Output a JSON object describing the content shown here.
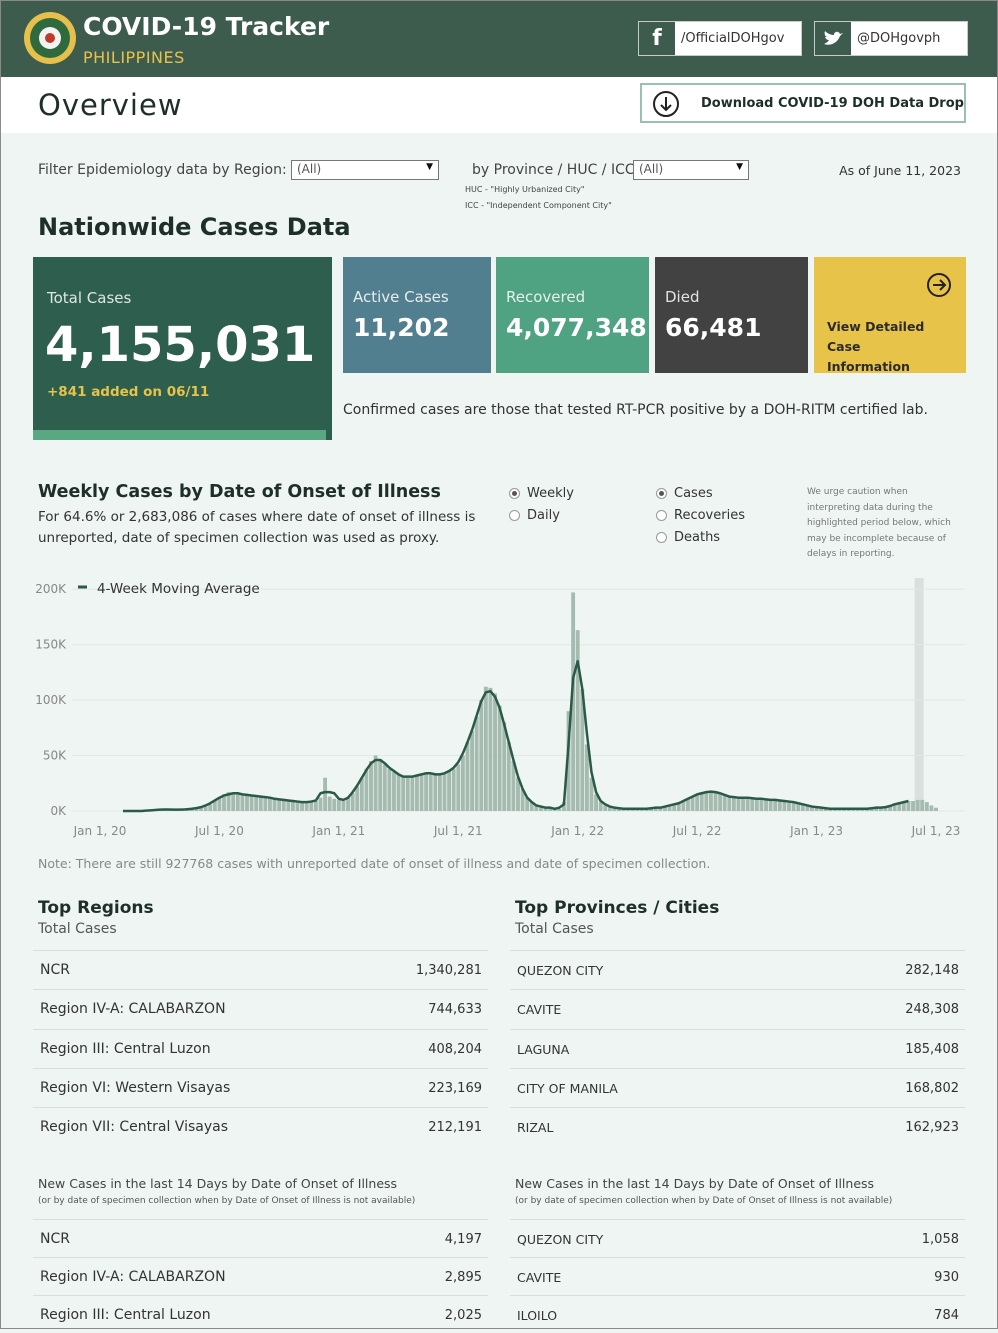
{
  "header": {
    "title": "COVID-19 Tracker",
    "subtitle": "PHILIPPINES",
    "facebook": "/OfficialDOHgov",
    "twitter": "@DOHgovph"
  },
  "overview": {
    "title": "Overview",
    "download": "Download COVID-19 DOH Data Drop"
  },
  "filters": {
    "region_label": "Filter Epidemiology data by Region:",
    "region_value": "(All)",
    "province_label": "by Province / HUC / ICC:",
    "province_value": "(All)",
    "huc_note": "HUC - \"Highly Urbanized City\"",
    "icc_note": "ICC - \"Independent Component City\"",
    "as_of": "As of June 11, 2023"
  },
  "nationwide": {
    "title": "Nationwide Cases Data",
    "total_label": "Total Cases",
    "total_value": "4,155,031",
    "added": "+841 added on 06/11",
    "active_label": "Active Cases",
    "active_value": "11,202",
    "recovered_label": "Recovered",
    "recovered_value": "4,077,348",
    "died_label": "Died",
    "died_value": "66,481",
    "details_link": "View Detailed Case Information",
    "confirmed_note": "Confirmed cases are those that tested RT-PCR positive by a DOH-RITM certified lab."
  },
  "chart_data": {
    "type": "bar",
    "title": "Weekly Cases by Date of Onset of Illness",
    "subtitle": "For 64.6% or 2,683,086 of cases where date of onset of illness is unreported, date of specimen collection was used as proxy.",
    "period_options": [
      "Weekly",
      "Daily"
    ],
    "metric_options": [
      "Cases",
      "Recoveries",
      "Deaths"
    ],
    "caution": "We urge caution when interpreting data during the highlighted period below, which may be incomplete because of delays in reporting.",
    "footnote": "Note: There are still 927768 cases with unreported date of onset of illness and date of specimen collection.",
    "color": "#a5bbb0",
    "grid": true,
    "ylim": [
      0,
      210000
    ],
    "yticks": [
      {
        "value": 0,
        "label": "0K"
      },
      {
        "value": 50000,
        "label": "50K"
      },
      {
        "value": 100000,
        "label": "100K"
      },
      {
        "value": 150000,
        "label": "150K"
      },
      {
        "value": 200000,
        "label": "200K"
      }
    ],
    "categories": [
      "Jan 1, 20",
      null,
      null,
      null,
      null,
      null,
      null,
      null,
      null,
      null,
      null,
      null,
      null,
      null,
      null,
      null,
      null,
      null,
      null,
      null,
      null,
      null,
      null,
      null,
      null,
      null,
      "Jul 1, 20",
      null,
      null,
      null,
      null,
      null,
      null,
      null,
      null,
      null,
      null,
      null,
      null,
      null,
      null,
      null,
      null,
      null,
      null,
      null,
      null,
      null,
      null,
      null,
      null,
      null,
      "Jan 1, 21",
      null,
      null,
      null,
      null,
      null,
      null,
      null,
      null,
      null,
      null,
      null,
      null,
      null,
      null,
      null,
      null,
      null,
      null,
      null,
      null,
      null,
      null,
      null,
      null,
      null,
      "Jul 1, 21",
      null,
      null,
      null,
      null,
      null,
      null,
      null,
      null,
      null,
      null,
      null,
      null,
      null,
      null,
      null,
      null,
      null,
      null,
      null,
      null,
      null,
      null,
      null,
      null,
      null,
      "Jan 1, 22",
      null,
      null,
      null,
      null,
      null,
      null,
      null,
      null,
      null,
      null,
      null,
      null,
      null,
      null,
      null,
      null,
      null,
      null,
      null,
      null,
      null,
      null,
      null,
      null,
      null,
      "Jul 1, 22",
      null,
      null,
      null,
      null,
      null,
      null,
      null,
      null,
      null,
      null,
      null,
      null,
      null,
      null,
      null,
      null,
      null,
      null,
      null,
      null,
      null,
      null,
      null,
      null,
      null,
      "Jan 1, 23",
      null,
      null,
      null,
      null,
      null,
      null,
      null,
      null,
      null,
      null,
      null,
      null,
      null,
      null,
      null,
      null,
      null,
      null,
      null,
      null,
      null,
      null,
      null,
      null,
      null,
      "Jul 1, 23"
    ],
    "values": [
      0,
      0,
      0,
      0,
      0,
      0,
      0,
      0,
      0,
      0,
      100,
      300,
      800,
      1200,
      1500,
      1500,
      1200,
      1000,
      1200,
      1500,
      2000,
      2500,
      3000,
      4000,
      6000,
      9000,
      12000,
      15000,
      17000,
      16000,
      16000,
      15000,
      14000,
      14000,
      13000,
      13000,
      12000,
      12000,
      11000,
      10000,
      10000,
      9000,
      9000,
      8000,
      8000,
      7000,
      8000,
      9000,
      12000,
      30000,
      13000,
      11000,
      10000,
      9000,
      12000,
      16000,
      22000,
      30000,
      38000,
      45000,
      50000,
      47000,
      42000,
      38000,
      35000,
      33000,
      32000,
      30000,
      30000,
      32000,
      33000,
      35000,
      34000,
      33000,
      32000,
      34000,
      36000,
      38000,
      42000,
      50000,
      62000,
      72000,
      85000,
      100000,
      112000,
      111000,
      106000,
      95000,
      80000,
      62000,
      45000,
      30000,
      20000,
      12000,
      8000,
      5000,
      4000,
      3000,
      3000,
      2000,
      2000,
      8000,
      90000,
      197000,
      163000,
      110000,
      60000,
      30000,
      15000,
      8000,
      5000,
      4000,
      3000,
      2000,
      2000,
      2000,
      2000,
      2000,
      2000,
      2000,
      2000,
      3000,
      3000,
      4000,
      5000,
      6000,
      7000,
      9000,
      11000,
      13000,
      15000,
      17000,
      18000,
      18000,
      17000,
      16000,
      14000,
      13000,
      12000,
      12000,
      12000,
      12000,
      12000,
      11000,
      11000,
      11000,
      10000,
      10000,
      10000,
      9000,
      9000,
      8000,
      7000,
      6000,
      5000,
      4000,
      3000,
      3000,
      2000,
      2000,
      2000,
      2000,
      2000,
      2000,
      2000,
      2000,
      2000,
      2000,
      3000,
      3000,
      3000,
      4000,
      5000,
      6000,
      7000,
      8000,
      9000,
      9000,
      10000,
      10000,
      8000,
      5000,
      3000
    ],
    "series": [
      {
        "name": "4-Week Moving Average",
        "type": "line",
        "color": "#2b5a48",
        "values": [
          null,
          null,
          null,
          null,
          null,
          0,
          0,
          0,
          0,
          0,
          300,
          600,
          900,
          1200,
          1300,
          1300,
          1200,
          1200,
          1300,
          1600,
          2000,
          2600,
          3500,
          5000,
          7000,
          9500,
          12000,
          14000,
          15000,
          16000,
          16000,
          15000,
          14500,
          14000,
          13500,
          13000,
          12500,
          12000,
          11000,
          10500,
          10000,
          9500,
          9000,
          8500,
          8000,
          8000,
          8500,
          9500,
          16000,
          17000,
          17000,
          16000,
          11000,
          10000,
          12000,
          17000,
          23000,
          30000,
          37000,
          43000,
          46000,
          46000,
          43000,
          39000,
          36000,
          33000,
          31000,
          31000,
          31000,
          32000,
          33000,
          34000,
          34000,
          33000,
          33000,
          34000,
          36000,
          39000,
          44000,
          52000,
          62000,
          73000,
          86000,
          99000,
          107000,
          108000,
          103000,
          93000,
          78000,
          62000,
          46000,
          31000,
          20000,
          12000,
          8000,
          5000,
          4000,
          3000,
          3000,
          2000,
          3000,
          6000,
          60000,
          120000,
          135000,
          110000,
          70000,
          35000,
          17000,
          9000,
          6000,
          4000,
          3000,
          2500,
          2000,
          2000,
          2000,
          2000,
          2000,
          2000,
          2500,
          3000,
          3000,
          4000,
          5000,
          6000,
          7000,
          9000,
          11000,
          13000,
          15000,
          16000,
          17000,
          17500,
          17000,
          16000,
          14500,
          13000,
          12500,
          12000,
          12000,
          12000,
          11500,
          11000,
          11000,
          10500,
          10000,
          10000,
          9500,
          9000,
          8500,
          8000,
          7000,
          6000,
          5000,
          4000,
          3500,
          3000,
          2500,
          2000,
          2000,
          2000,
          2000,
          2000,
          2000,
          2000,
          2000,
          2000,
          2500,
          3000,
          3000,
          3500,
          4500,
          6000,
          7000,
          8000,
          9000,
          null,
          null,
          null,
          null,
          null,
          null
        ]
      }
    ]
  },
  "top_regions": {
    "title": "Top Regions",
    "subtitle": "Total Cases",
    "rows": [
      [
        "NCR",
        "1,340,281"
      ],
      [
        "Region IV-A: CALABARZON",
        "744,633"
      ],
      [
        "Region III: Central Luzon",
        "408,204"
      ],
      [
        "Region VI: Western Visayas",
        "223,169"
      ],
      [
        "Region VII: Central Visayas",
        "212,191"
      ]
    ]
  },
  "top_provinces": {
    "title": "Top Provinces / Cities",
    "subtitle": "Total Cases",
    "rows": [
      [
        "QUEZON CITY",
        "282,148"
      ],
      [
        "CAVITE",
        "248,308"
      ],
      [
        "LAGUNA",
        "185,408"
      ],
      [
        "CITY OF MANILA",
        "168,802"
      ],
      [
        "RIZAL",
        "162,923"
      ]
    ]
  },
  "new_regions": {
    "title": "New Cases in the last 14 Days by Date of Onset of Illness",
    "note": "(or by date of specimen collection when by Date of Onset of Illness is not available)",
    "rows": [
      [
        "NCR",
        "4,197"
      ],
      [
        "Region IV-A: CALABARZON",
        "2,895"
      ],
      [
        "Region III: Central Luzon",
        "2,025"
      ]
    ]
  },
  "new_provinces": {
    "title": "New Cases in the last 14 Days by Date of Onset of Illness",
    "note": "(or by date of specimen collection when by Date of Onset of Illness is not available)",
    "rows": [
      [
        "QUEZON CITY",
        "1,058"
      ],
      [
        "CAVITE",
        "930"
      ],
      [
        "ILOILO",
        "784"
      ]
    ]
  }
}
